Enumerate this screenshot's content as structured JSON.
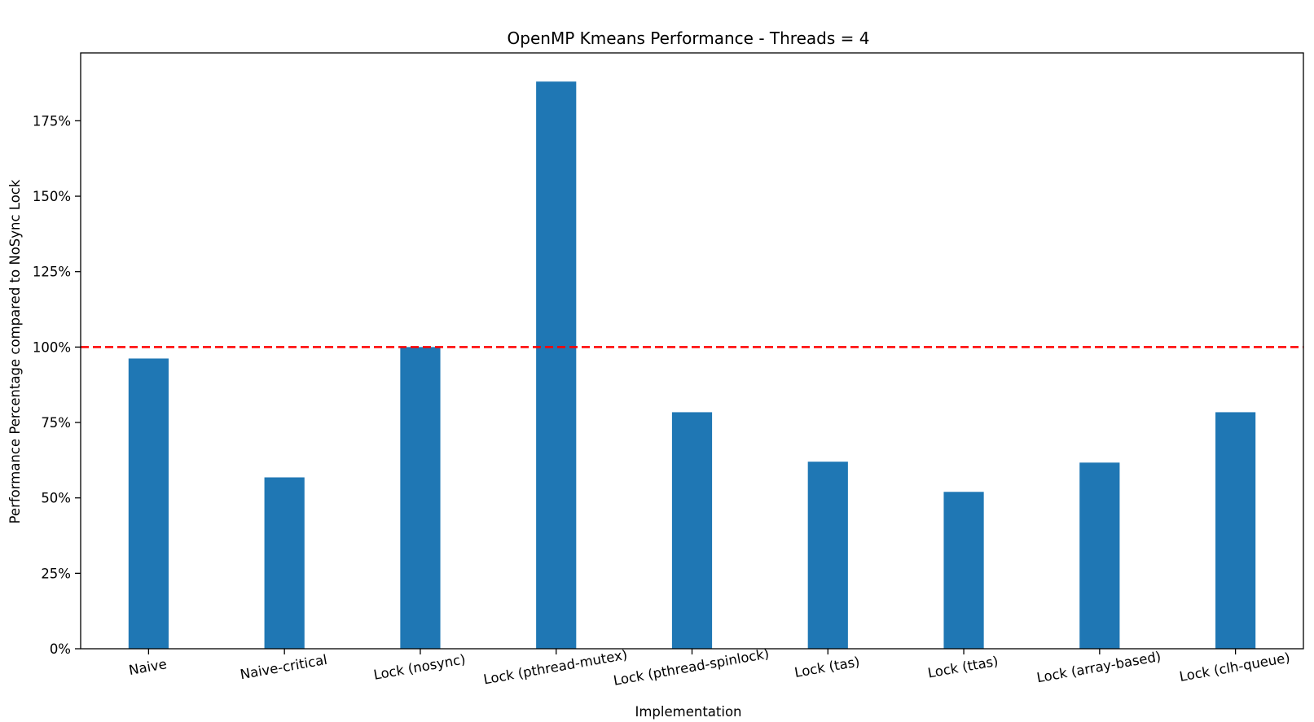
{
  "chart_data": {
    "type": "bar",
    "title": "OpenMP Kmeans Performance - Threads = 4",
    "xlabel": "Implementation",
    "ylabel": "Performance Percentage compared to NoSync Lock",
    "categories": [
      "Naive",
      "Naive-critical",
      "Lock (nosync)",
      "Lock (pthread-mutex)",
      "Lock (pthread-spinlock)",
      "Lock (tas)",
      "Lock (ttas)",
      "Lock (array-based)",
      "Lock (clh-queue)"
    ],
    "values": [
      96.2,
      56.8,
      100.0,
      188.0,
      78.4,
      62.0,
      52.0,
      61.7,
      78.4
    ],
    "ylim": [
      0,
      197.5
    ],
    "yticks": [
      0,
      25,
      50,
      75,
      100,
      125,
      150,
      175
    ],
    "ytick_labels": [
      "0%",
      "25%",
      "50%",
      "75%",
      "100%",
      "125%",
      "150%",
      "175%"
    ],
    "reference_line": {
      "value": 100,
      "color": "#ff0000",
      "style": "dashed"
    },
    "bar_color": "#1f77b4",
    "grid": false,
    "legend": "none"
  }
}
